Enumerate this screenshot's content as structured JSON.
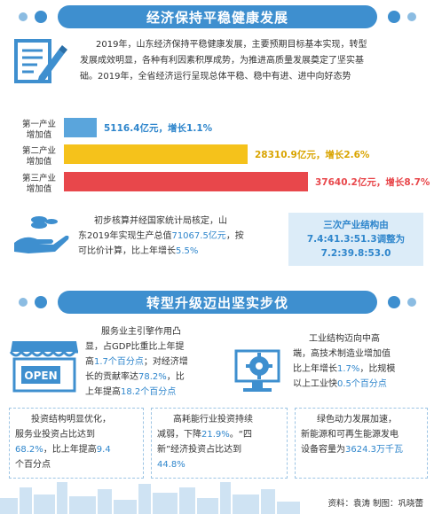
{
  "banner1": {
    "title": "经济保持平稳健康发展"
  },
  "intro": {
    "line1": "2019年，山东经济保持平稳健康发展，主要预期目标基本实现，转型",
    "line2": "发展成效明显，各种有利因素积厚成势，为推进高质量发展奠定了坚实基",
    "line3": "础。2019年，全省经济运行呈现总体平稳、稳中有进、进中向好态势"
  },
  "bars": [
    {
      "label1": "第一产业",
      "label2": "增加值",
      "value": 5116.4,
      "value_text": "5116.4亿元，",
      "growth_text": "增长1.1%",
      "color": "#5aa5dc"
    },
    {
      "label1": "第二产业",
      "label2": "增加值",
      "value": 28310.9,
      "value_text": "28310.9亿元，",
      "growth_text": "增长2.6%",
      "color": "#f5c21b"
    },
    {
      "label1": "第三产业",
      "label2": "增加值",
      "value": 37640.2,
      "value_text": "37640.2亿元，",
      "growth_text": "增长8.7%",
      "color": "#e8474b"
    }
  ],
  "gdp": {
    "line1": "初步核算并经国家统计局核定，山",
    "line2a": "东2019年实现生产总值",
    "line2b": "71067.5亿元",
    "line2c": "，按",
    "line3a": "可比价计算，比上年增长",
    "line3b": "5.5%"
  },
  "structure": {
    "title": "三次产业结构由",
    "line2": "7.4:41.3:51.3调整为",
    "line3": "7.2:39.8:53.0"
  },
  "banner2": {
    "title": "转型升级迈出坚实步伐"
  },
  "service": {
    "l1": "服务业主引擎作用凸",
    "l2": "显，占GDP比重比上年提",
    "l3a": "高",
    "l3b": "1.7个百分点",
    "l3c": "；对经济增",
    "l4a": "长的贡献率达",
    "l4b": "78.2%",
    "l4c": "，比",
    "l5a": "上年提高",
    "l5b": "18.2个百分点"
  },
  "open_sign": "OPEN",
  "industry": {
    "l1": "工业结构迈向中高",
    "l2": "端，高技术制造业增加值",
    "l3a": "比上年增长",
    "l3b": "1.7%",
    "l3c": "，比规模",
    "l4a": "以上工业快",
    "l4b": "0.5个百分点"
  },
  "investment": {
    "l1": "投资结构明显优化，",
    "l2": "服务业投资占比达到",
    "l3a": "68.2%",
    "l3b": "，比上年提高",
    "l3c": "9.4",
    "l4": "个百分点"
  },
  "energy_invest": {
    "l1": "高耗能行业投资持续",
    "l2a": "减弱，下降",
    "l2b": "21.9%",
    "l2c": "。“四",
    "l3": "新”经济投资占比达到",
    "l4": "44.8%"
  },
  "green": {
    "l1": "绿色动力发展加速，",
    "l2": "新能源和可再生能源发电",
    "l3a": "设备容量为",
    "l3b": "3624.3万千瓦"
  },
  "credit": "资料：袁涛  制图：巩晓蕾"
}
